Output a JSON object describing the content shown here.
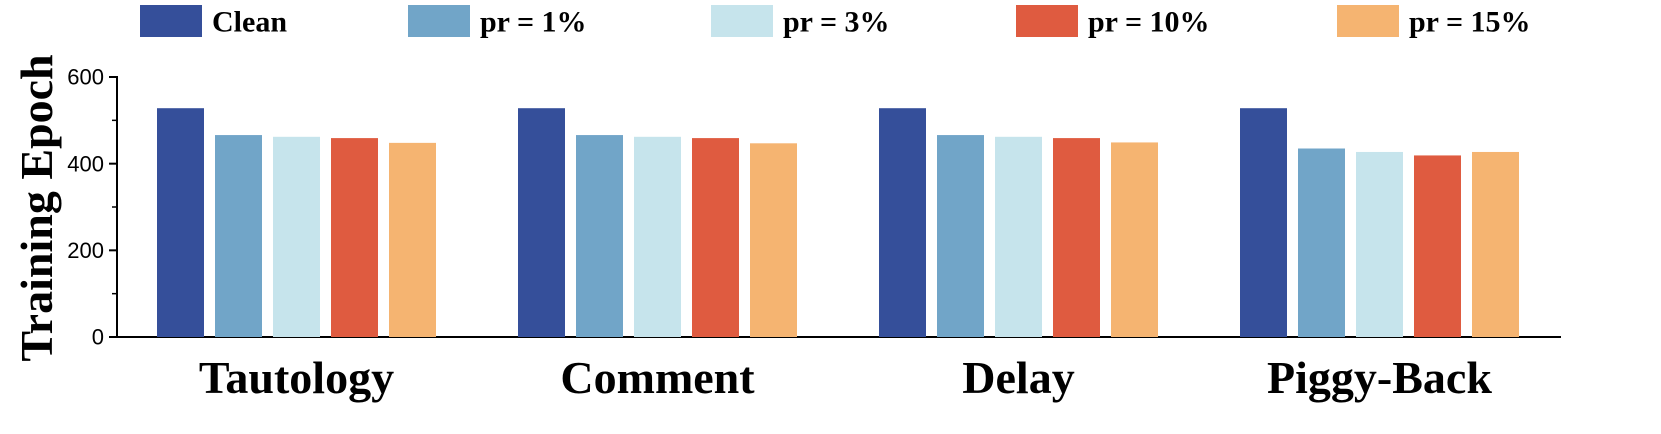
{
  "chart_data": {
    "type": "bar",
    "title": "",
    "xlabel": "",
    "ylabel": "Training Epoch",
    "ylim": [
      0,
      600
    ],
    "yticks": [
      0,
      200,
      400,
      600
    ],
    "grid": false,
    "legend_position": "top",
    "categories": [
      "Tautology",
      "Comment",
      "Delay",
      "Piggy-Back"
    ],
    "series": [
      {
        "name": "Clean",
        "color": "#354f9a",
        "values": [
          528,
          528,
          528,
          528
        ]
      },
      {
        "name": "pr = 1%",
        "color": "#71a5c8",
        "values": [
          466,
          466,
          466,
          435
        ]
      },
      {
        "name": "pr = 3%",
        "color": "#c6e4ec",
        "values": [
          462,
          462,
          462,
          427
        ]
      },
      {
        "name": "pr = 10%",
        "color": "#df5b40",
        "values": [
          459,
          459,
          459,
          419
        ]
      },
      {
        "name": "pr = 15%",
        "color": "#f5b471",
        "values": [
          448,
          447,
          449,
          427
        ]
      }
    ]
  }
}
